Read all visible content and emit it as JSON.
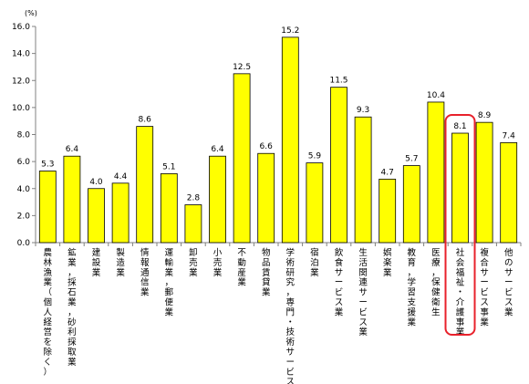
{
  "chart_data": {
    "type": "bar",
    "unit_label": "(%)",
    "categories": [
      "農林漁業（個人経営を除く）",
      "鉱業，採石業，砂利採取業",
      "建設業",
      "製造業",
      "情報通信業",
      "運輸業，郵便業",
      "卸売業",
      "小売業",
      "不動産業",
      "物品賃貸業",
      "学術研究，専門・技術サービス業",
      "宿泊業",
      "飲食サービス業",
      "生活関連サービス業",
      "娯楽業",
      "教育，学習支援業",
      "医療，保健衛生",
      "社会福祉・介護事業",
      "複合サービス事業",
      "他のサービス業"
    ],
    "values": [
      5.3,
      6.4,
      4.0,
      4.4,
      8.6,
      5.1,
      2.8,
      6.4,
      12.5,
      6.6,
      15.2,
      5.9,
      11.5,
      9.3,
      4.7,
      5.7,
      10.4,
      8.1,
      8.9,
      7.4
    ],
    "value_labels": [
      "5.3",
      "6.4",
      "4.0",
      "4.4",
      "8.6",
      "5.1",
      "2.8",
      "6.4",
      "12.5",
      "6.6",
      "15.2",
      "5.9",
      "11.5",
      "9.3",
      "4.7",
      "5.7",
      "10.4",
      "8.1",
      "8.9",
      "7.4"
    ],
    "yticks": [
      "0.0",
      "2.0",
      "4.0",
      "6.0",
      "8.0",
      "10.0",
      "12.0",
      "14.0",
      "16.0"
    ],
    "ylim": [
      0,
      16
    ],
    "highlighted_category": "社会福祉・介護事業",
    "colors": {
      "bar_fill": "#ffff00",
      "bar_stroke": "#000000",
      "highlight_stroke": "#e8212b",
      "axis": "#808080"
    }
  }
}
